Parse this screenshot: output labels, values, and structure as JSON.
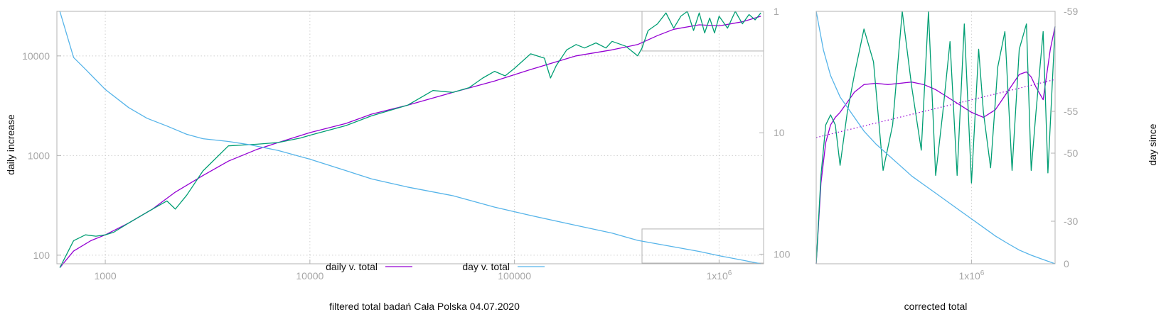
{
  "colors": {
    "fit": "#9400d3",
    "raw": "#009e73",
    "day": "#56b4e9",
    "frame": "#b3b3b3",
    "grid": "#cfcfcf"
  },
  "chart_data": [
    {
      "type": "line",
      "xscale": "log",
      "yscale": "log",
      "y2scale": "log",
      "xlim": [
        580,
        1650000
      ],
      "ylim": [
        82,
        28000
      ],
      "y2lim": [
        1,
        120
      ],
      "xlabel": "filtered total badań Cała Polska 04.07.2020",
      "ylabel": "daily increase",
      "xticks": [
        "1000",
        "10000",
        "100000",
        "1x10^6"
      ],
      "yticks": [
        "100",
        "1000",
        "10000"
      ],
      "y2ticks": [
        "1",
        "10",
        "100"
      ],
      "grid": true,
      "legend_position": "bottom-center",
      "legend": [
        "daily v. total",
        "day v. total"
      ],
      "series": [
        {
          "name": "daily v. total",
          "axis": "y",
          "x": [
            600,
            700,
            850,
            1000,
            1300,
            1700,
            2200,
            3000,
            4000,
            5500,
            7000,
            10000,
            15000,
            20000,
            30000,
            50000,
            80000,
            120000,
            200000,
            300000,
            400000,
            500000,
            600000,
            800000,
            1000000,
            1300000,
            1600000
          ],
          "values": [
            75,
            110,
            140,
            160,
            210,
            290,
            430,
            630,
            880,
            1150,
            1350,
            1700,
            2100,
            2600,
            3200,
            4300,
            5600,
            7300,
            10000,
            11500,
            13000,
            16000,
            18500,
            20500,
            20000,
            22000,
            25000
          ]
        },
        {
          "name": "",
          "axis": "y",
          "x": [
            600,
            700,
            800,
            900,
            1000,
            1100,
            1300,
            1600,
            2000,
            2200,
            2500,
            3000,
            4000,
            5500,
            7000,
            9000,
            10000,
            15000,
            20000,
            30000,
            40000,
            50000,
            60000,
            70000,
            80000,
            90000,
            100000,
            120000,
            140000,
            150000,
            160000,
            180000,
            200000,
            220000,
            250000,
            280000,
            300000,
            350000,
            400000,
            420000,
            450000,
            500000,
            550000,
            600000,
            650000,
            700000,
            750000,
            800000,
            850000,
            900000,
            950000,
            1000000,
            1100000,
            1200000,
            1300000,
            1400000,
            1500000,
            1600000
          ],
          "values": [
            75,
            140,
            160,
            155,
            160,
            170,
            210,
            270,
            350,
            290,
            400,
            700,
            1250,
            1300,
            1350,
            1500,
            1600,
            2000,
            2500,
            3200,
            4500,
            4300,
            4800,
            6000,
            7000,
            6300,
            7500,
            10500,
            9500,
            6000,
            8000,
            11500,
            13000,
            12000,
            13500,
            12000,
            14000,
            12500,
            10000,
            12000,
            18000,
            21000,
            27000,
            19000,
            25000,
            28000,
            18000,
            27000,
            17000,
            24000,
            17000,
            25000,
            19000,
            28000,
            21000,
            26000,
            23000,
            27000
          ]
        },
        {
          "name": "day v. total",
          "axis": "y2",
          "x": [
            600,
            700,
            800,
            1000,
            1300,
            1600,
            2000,
            2500,
            3000,
            4000,
            5000,
            7000,
            10000,
            15000,
            20000,
            30000,
            50000,
            80000,
            120000,
            200000,
            300000,
            400000,
            600000,
            800000,
            1000000,
            1300000,
            1600000
          ],
          "values": [
            1,
            2.4,
            3,
            4.4,
            6.2,
            7.6,
            8.8,
            10.3,
            11.2,
            11.8,
            12.5,
            14,
            16.5,
            20.5,
            24,
            28,
            33,
            41,
            48,
            58,
            67,
            77,
            87,
            95,
            103,
            112,
            120
          ]
        }
      ]
    },
    {
      "type": "line",
      "xlim": [
        0,
        1
      ],
      "ylim": [
        0,
        1
      ],
      "y2lim": [
        -59,
        0
      ],
      "xlabel": "corrected total",
      "ylabel": "day since",
      "xticks": [
        "1x10^6"
      ],
      "y2ticks": [
        "-59",
        "-55",
        "-50",
        "-30",
        "0"
      ],
      "series": [
        {
          "name": "",
          "x": [
            0,
            0.02,
            0.04,
            0.06,
            0.08,
            0.1,
            0.13,
            0.16,
            0.2,
            0.25,
            0.3,
            0.35,
            0.4,
            0.45,
            0.5,
            0.55,
            0.6,
            0.65,
            0.7,
            0.75,
            0.8,
            0.85,
            0.88,
            0.9,
            0.92,
            0.95,
            0.98,
            1.0
          ],
          "values": [
            0,
            0.32,
            0.48,
            0.55,
            0.58,
            0.6,
            0.64,
            0.68,
            0.71,
            0.715,
            0.71,
            0.715,
            0.72,
            0.71,
            0.69,
            0.66,
            0.63,
            0.6,
            0.58,
            0.61,
            0.68,
            0.75,
            0.76,
            0.74,
            0.7,
            0.65,
            0.85,
            0.94
          ]
        },
        {
          "name": "",
          "x": [
            0,
            0.02,
            0.04,
            0.06,
            0.08,
            0.1,
            0.13,
            0.16,
            0.2,
            0.24,
            0.28,
            0.32,
            0.36,
            0.4,
            0.44,
            0.47,
            0.5,
            0.53,
            0.56,
            0.59,
            0.62,
            0.65,
            0.68,
            0.7,
            0.73,
            0.76,
            0.79,
            0.82,
            0.85,
            0.88,
            0.9,
            0.92,
            0.95,
            0.97,
            1.0
          ],
          "values": [
            0,
            0.35,
            0.55,
            0.59,
            0.55,
            0.39,
            0.6,
            0.75,
            0.93,
            0.8,
            0.37,
            0.55,
            1.0,
            0.7,
            0.45,
            1.0,
            0.35,
            0.6,
            0.88,
            0.35,
            0.95,
            0.32,
            0.85,
            0.6,
            0.38,
            0.78,
            0.92,
            0.37,
            0.85,
            0.95,
            0.37,
            0.6,
            0.92,
            0.36,
            0.94
          ]
        },
        {
          "name": "",
          "style": "dotted",
          "x": [
            0,
            1
          ],
          "values": [
            0.5,
            0.73
          ]
        },
        {
          "name": "",
          "axis": "y2",
          "x": [
            0,
            0.03,
            0.06,
            0.1,
            0.15,
            0.2,
            0.25,
            0.3,
            0.35,
            0.4,
            0.45,
            0.5,
            0.55,
            0.6,
            0.65,
            0.7,
            0.75,
            0.8,
            0.85,
            0.9,
            0.95,
            1.0
          ],
          "values": [
            -59,
            -50,
            -44,
            -39,
            -35,
            -31,
            -28,
            -25.5,
            -23,
            -20.5,
            -18.5,
            -16.5,
            -14.5,
            -12.5,
            -10.5,
            -8.5,
            -6.5,
            -4.8,
            -3.2,
            -2,
            -1,
            0
          ]
        }
      ]
    }
  ]
}
